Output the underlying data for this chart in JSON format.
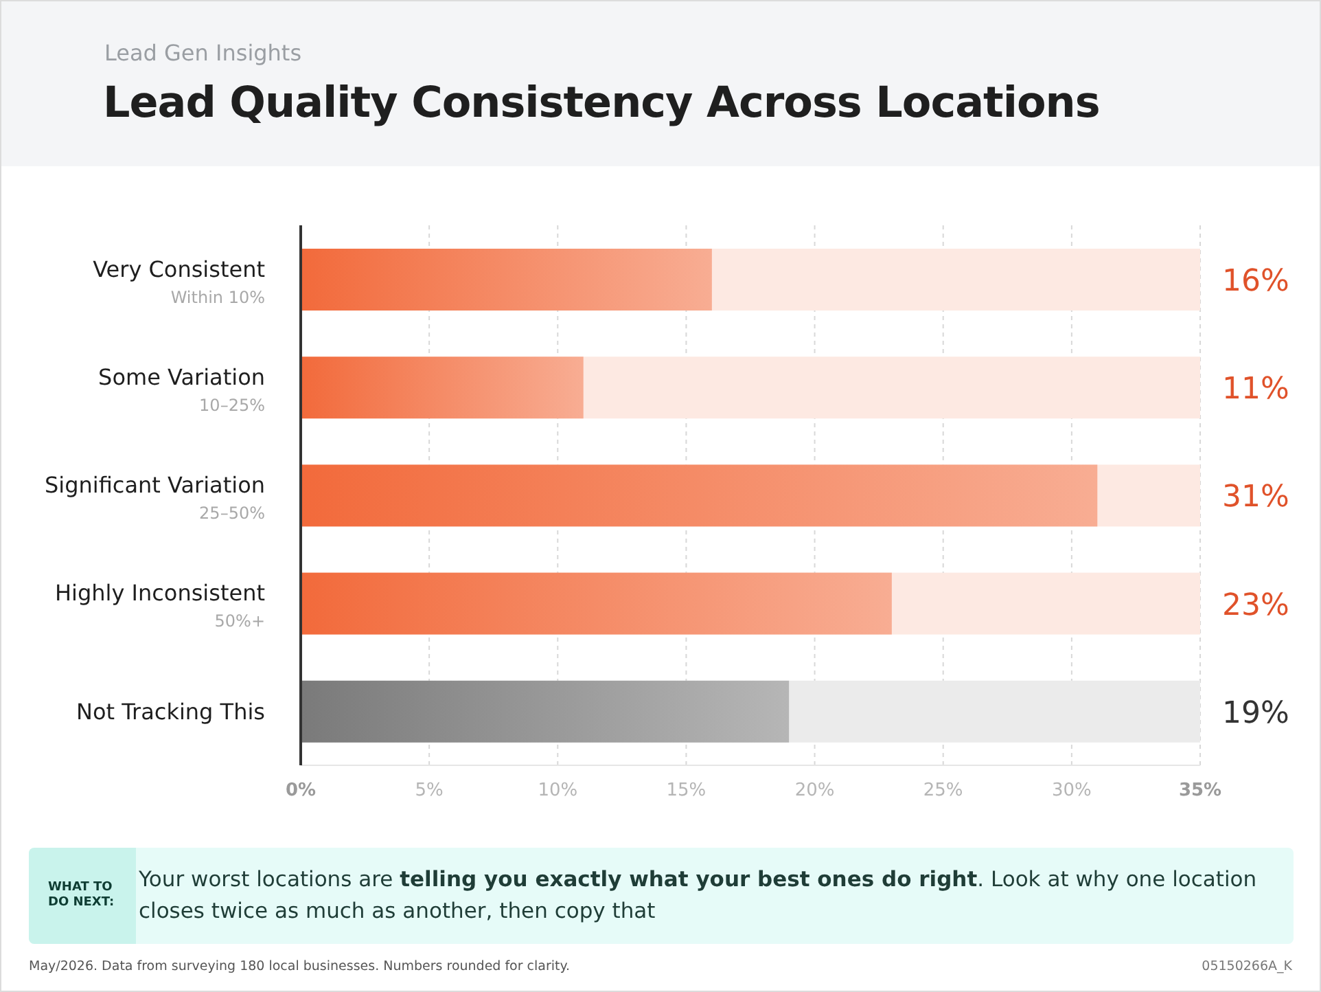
{
  "chart_data": {
    "type": "bar",
    "orientation": "horizontal",
    "subtitle": "Lead Gen Insights",
    "title": "Lead Quality Consistency Across Locations",
    "categories": [
      "Very Consistent\nWithin 10%",
      "Some Variation\n10–25%",
      "Significant Variation\n25–50%",
      "Highly Inconsistent\n50%+",
      "Not Tracking This"
    ],
    "values": [
      16,
      11,
      31,
      23,
      19
    ],
    "value_labels": [
      "16%",
      "11%",
      "31%",
      "23%",
      "19%"
    ],
    "colors": [
      "#f26a3b",
      "#f26a3b",
      "#f26a3b",
      "#f26a3b",
      "#7a7a7a"
    ],
    "xlim": [
      0,
      35
    ],
    "xticks": [
      {
        "value": 0,
        "label": "0%"
      },
      {
        "value": 5,
        "label": "5%"
      },
      {
        "value": 10,
        "label": "10%"
      },
      {
        "value": 15,
        "label": "15%"
      },
      {
        "value": 20,
        "label": "20%"
      },
      {
        "value": 25,
        "label": "25%"
      },
      {
        "value": 30,
        "label": "30%"
      },
      {
        "value": 35,
        "label": "35%"
      }
    ],
    "grid": "x",
    "annotations": [
      "WHAT TO DO NEXT:",
      "Your worst locations are ",
      "telling you exactly what your best ones do right",
      ". Look at why one location closes twice as much as another, then copy that",
      "May/2026. Data from surveying 180 local businesses. Numbers rounded for clarity.",
      "05150266A_K"
    ]
  }
}
